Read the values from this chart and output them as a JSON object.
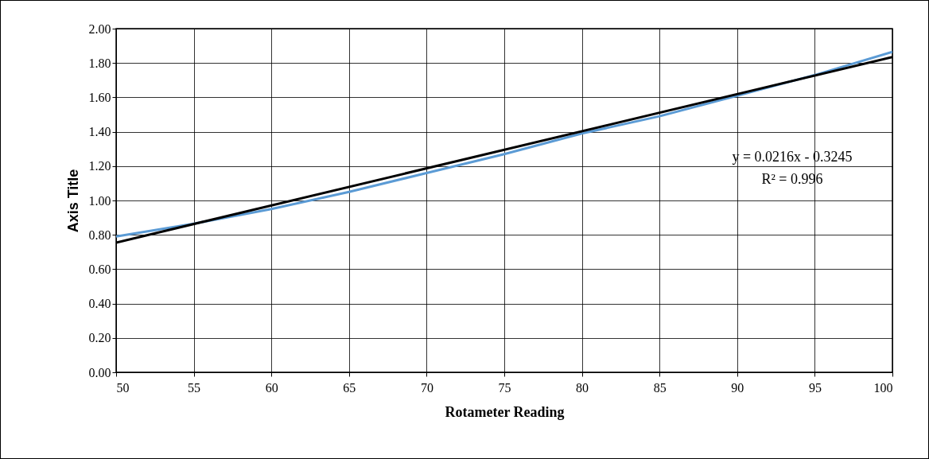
{
  "chart_data": {
    "type": "line",
    "xlabel": "Rotameter Reading",
    "ylabel": "Axis Title",
    "xlim": [
      50,
      100
    ],
    "xticks": [
      50,
      55,
      60,
      65,
      70,
      75,
      80,
      85,
      90,
      95,
      100
    ],
    "ylim": [
      0,
      2
    ],
    "yticks": [
      {
        "value": 0,
        "label": "0.00"
      },
      {
        "value": 0.2,
        "label": "0.20"
      },
      {
        "value": 0.4,
        "label": "0.40"
      },
      {
        "value": 0.6,
        "label": "0.60"
      },
      {
        "value": 0.8,
        "label": "0.80"
      },
      {
        "value": 1,
        "label": "1.00"
      },
      {
        "value": 1.2,
        "label": "1.20"
      },
      {
        "value": 1.4,
        "label": "1.40"
      },
      {
        "value": 1.6,
        "label": "1.60"
      },
      {
        "value": 1.8,
        "label": "1.80"
      },
      {
        "value": 2,
        "label": "2.00"
      }
    ],
    "grid": true,
    "marker": "none",
    "line_style": "solid",
    "series": [
      {
        "color": "#5b9bd5",
        "x": [
          50,
          55,
          60,
          65,
          70,
          75,
          80,
          85,
          90,
          95,
          100
        ],
        "values": [
          0.79,
          0.865,
          0.95,
          1.05,
          1.16,
          1.27,
          1.39,
          1.49,
          1.61,
          1.73,
          1.865
        ]
      },
      {
        "type": "line",
        "color": "#000000",
        "x": [
          50,
          100
        ],
        "values": [
          0.755,
          1.835
        ]
      }
    ],
    "annotations": [
      "y = 0.0216x - 0.3245",
      "R² = 0.996"
    ]
  }
}
